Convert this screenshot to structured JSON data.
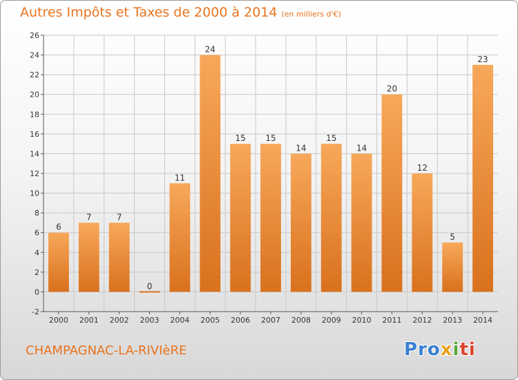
{
  "title": "Autres Impôts et Taxes de 2000 à 2014",
  "unit_note": "(en milliers d'€)",
  "commune": "CHAMPAGNAC-LA-RIVIèRE",
  "logo": {
    "parts": [
      "Pro",
      "x",
      "i",
      "ti"
    ]
  },
  "colors": {
    "title": "#e8731f",
    "bar_light": "#f7a85a",
    "bar_dark": "#d9711d",
    "grid": "#c8c8c8"
  },
  "chart_data": {
    "type": "bar",
    "title": "Autres Impôts et Taxes de 2000 à 2014",
    "subtitle": "(en milliers d'€)",
    "categories": [
      "2000",
      "2001",
      "2002",
      "2003",
      "2004",
      "2005",
      "2006",
      "2007",
      "2008",
      "2009",
      "2010",
      "2011",
      "2012",
      "2013",
      "2014"
    ],
    "values": [
      6,
      7,
      7,
      0,
      11,
      24,
      15,
      15,
      14,
      15,
      14,
      20,
      12,
      5,
      23
    ],
    "xlabel": "",
    "ylabel": "",
    "ylim": [
      -2,
      26
    ],
    "yticks": [
      -2,
      0,
      2,
      4,
      6,
      8,
      10,
      12,
      14,
      16,
      18,
      20,
      22,
      24,
      26
    ],
    "grid": true,
    "legend": "none"
  }
}
